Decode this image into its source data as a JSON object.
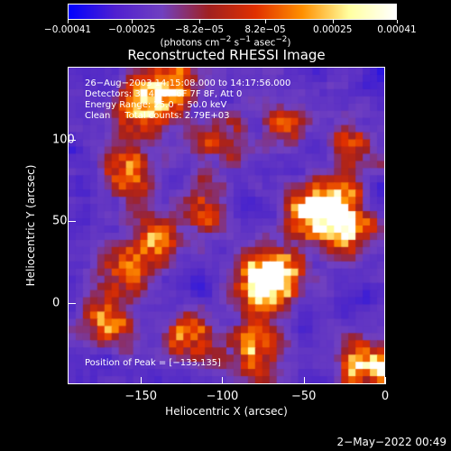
{
  "chart_data": {
    "type": "heatmap",
    "title": "Reconstructed RHESSI Image",
    "xlabel": "Heliocentric X (arcsec)",
    "ylabel": "Heliocentric Y (arcsec)",
    "xlim": [
      -195,
      0
    ],
    "ylim": [
      -50,
      145
    ],
    "x_ticks": [
      "−150",
      "−100",
      "−50",
      "0"
    ],
    "x_tick_values": [
      -150,
      -100,
      -50,
      0
    ],
    "y_ticks": [
      "100",
      "50",
      "0"
    ],
    "y_tick_values": [
      100,
      50,
      0
    ],
    "colorbar": {
      "range": [
        -0.00041,
        0.00041
      ],
      "tick_labels": [
        "−0.00041",
        "−0.00025",
        "−8.2e−05",
        "8.2e−05",
        "0.00025",
        "0.00041"
      ],
      "tick_values": [
        -0.00041,
        -0.00025,
        -8.2e-05,
        8.2e-05,
        0.00025,
        0.00041
      ],
      "units_prefix": "(photons cm",
      "units_exp1": "−2",
      "units_mid": " s",
      "units_exp2": "−1",
      "units_mid2": " asec",
      "units_exp3": "−2",
      "units_suffix": ")",
      "colors": [
        "#0000ff",
        "#5020d0",
        "#7040c0",
        "#a02020",
        "#e03000",
        "#ff9000",
        "#ffffa0",
        "#ffffff"
      ]
    },
    "annotations": {
      "line1": "26−Aug−2003 14:15:08.000 to 14:17:56.000",
      "line2": "Detectors: 3F 4F 5F 6F 7F 8F, Att 0",
      "line3": "Energy Range: 25.0 − 50.0 keV",
      "line4": "Clean     Total counts: 2.79E+03",
      "peak": "Position of Peak = [−133,135]"
    },
    "hotspots": [
      {
        "x": -150,
        "y": 120,
        "s": 1.0
      },
      {
        "x": -130,
        "y": 135,
        "s": 1.1
      },
      {
        "x": -160,
        "y": 80,
        "s": 0.9
      },
      {
        "x": -140,
        "y": 40,
        "s": 0.8
      },
      {
        "x": -75,
        "y": 10,
        "s": 1.3
      },
      {
        "x": -65,
        "y": 20,
        "s": 1.1
      },
      {
        "x": -45,
        "y": 55,
        "s": 1.2
      },
      {
        "x": -30,
        "y": 60,
        "s": 1.0
      },
      {
        "x": -20,
        "y": 45,
        "s": 1.0
      },
      {
        "x": -10,
        "y": -40,
        "s": 1.2
      },
      {
        "x": -80,
        "y": -30,
        "s": 1.0
      },
      {
        "x": -120,
        "y": -20,
        "s": 0.9
      },
      {
        "x": -170,
        "y": -10,
        "s": 0.8
      },
      {
        "x": -100,
        "y": 100,
        "s": 0.7
      },
      {
        "x": -60,
        "y": 110,
        "s": 0.6
      },
      {
        "x": -20,
        "y": 100,
        "s": 0.6
      },
      {
        "x": -110,
        "y": 60,
        "s": 0.7
      },
      {
        "x": -160,
        "y": 20,
        "s": 0.7
      }
    ]
  },
  "timestamp": "2−May−2022 00:49"
}
